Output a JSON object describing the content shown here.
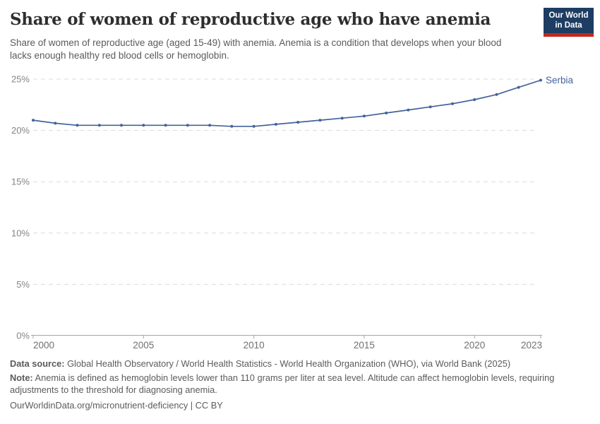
{
  "header": {
    "title": "Share of women of reproductive age who have anemia",
    "subtitle": "Share of women of reproductive age (aged 15-49) with anemia. Anemia is a condition that develops when your blood lacks enough healthy red blood cells or hemoglobin."
  },
  "logo": {
    "line1": "Our World",
    "line2": "in Data"
  },
  "chart_data": {
    "type": "line",
    "title": "Share of women of reproductive age who have anemia",
    "entity_label": "Serbia",
    "x": [
      2000,
      2001,
      2002,
      2003,
      2004,
      2005,
      2006,
      2007,
      2008,
      2009,
      2010,
      2011,
      2012,
      2013,
      2014,
      2015,
      2016,
      2017,
      2018,
      2019,
      2020,
      2021,
      2022,
      2023
    ],
    "series": [
      {
        "name": "Serbia",
        "values": [
          21.0,
          20.7,
          20.5,
          20.5,
          20.5,
          20.5,
          20.5,
          20.5,
          20.5,
          20.4,
          20.4,
          20.6,
          20.8,
          21.0,
          21.2,
          21.4,
          21.7,
          22.0,
          22.3,
          22.6,
          23.0,
          23.5,
          24.2,
          24.9
        ]
      }
    ],
    "unit": "%",
    "xlim": [
      2000,
      2023
    ],
    "ylim": [
      0,
      25
    ],
    "grid": "horizontal-dashed",
    "legend_position": "line-end-label",
    "yticks": [
      {
        "value": 0,
        "label": "0%"
      },
      {
        "value": 5,
        "label": "5%"
      },
      {
        "value": 10,
        "label": "10%"
      },
      {
        "value": 15,
        "label": "15%"
      },
      {
        "value": 20,
        "label": "20%"
      },
      {
        "value": 25,
        "label": "25%"
      }
    ],
    "xticks": [
      {
        "value": 2000,
        "label": "2000"
      },
      {
        "value": 2005,
        "label": "2005"
      },
      {
        "value": 2010,
        "label": "2010"
      },
      {
        "value": 2015,
        "label": "2015"
      },
      {
        "value": 2020,
        "label": "2020"
      },
      {
        "value": 2023,
        "label": "2023"
      }
    ]
  },
  "colors": {
    "line": "#44639c",
    "entity_label": "#44639c",
    "grid": "#dcdcdc",
    "axis": "#a5a5a5",
    "y_tick_text": "#858585",
    "x_tick_text": "#707070",
    "logo_navy": "#1d3d63",
    "logo_red": "#c5281c"
  },
  "footer": {
    "datasource_label": "Data source:",
    "datasource_text": " Global Health Observatory / World Health Statistics - World Health Organization (WHO), via World Bank (2025)",
    "note_label": "Note:",
    "note_text": " Anemia is defined as hemoglobin levels lower than 110 grams per liter at sea level. Altitude can affect hemoglobin levels, requiring adjustments to the threshold for diagnosing anemia.",
    "citation": "OurWorldinData.org/micronutrient-deficiency | CC BY"
  }
}
